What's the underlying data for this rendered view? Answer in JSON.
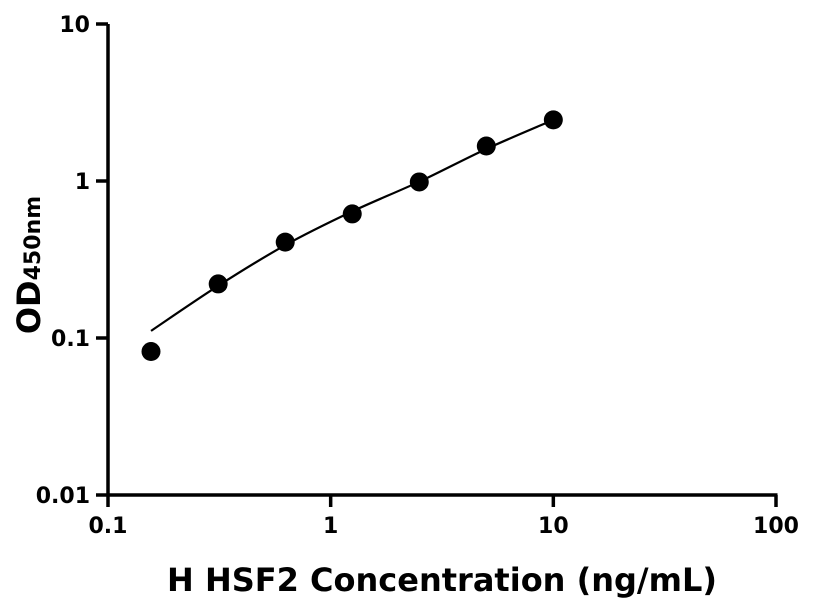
{
  "chart_data": {
    "type": "scatter",
    "title": "",
    "xlabel": "H HSF2 Concentration (ng/mL)",
    "ylabel": "OD",
    "ylabel_subscript": "450nm",
    "xscale": "log",
    "yscale": "log",
    "xlim": [
      0.1,
      100
    ],
    "ylim": [
      0.01,
      10
    ],
    "x_ticks": [
      "0.1",
      "1",
      "10",
      "100"
    ],
    "y_ticks": [
      "0.01",
      "0.1",
      "1",
      "10"
    ],
    "grid": false,
    "point_color": "#000000",
    "series": [
      {
        "x": [
          0.156,
          0.3125,
          0.625,
          1.25,
          2.5,
          5,
          10
        ],
        "y": [
          0.082,
          0.221,
          0.408,
          0.617,
          0.986,
          1.67,
          2.45
        ]
      }
    ],
    "fit_curve": {
      "x": [
        0.156,
        0.3125,
        0.625,
        1.25,
        2.5,
        5,
        10
      ],
      "y": [
        0.111,
        0.215,
        0.39,
        0.64,
        0.99,
        1.6,
        2.45
      ]
    }
  }
}
